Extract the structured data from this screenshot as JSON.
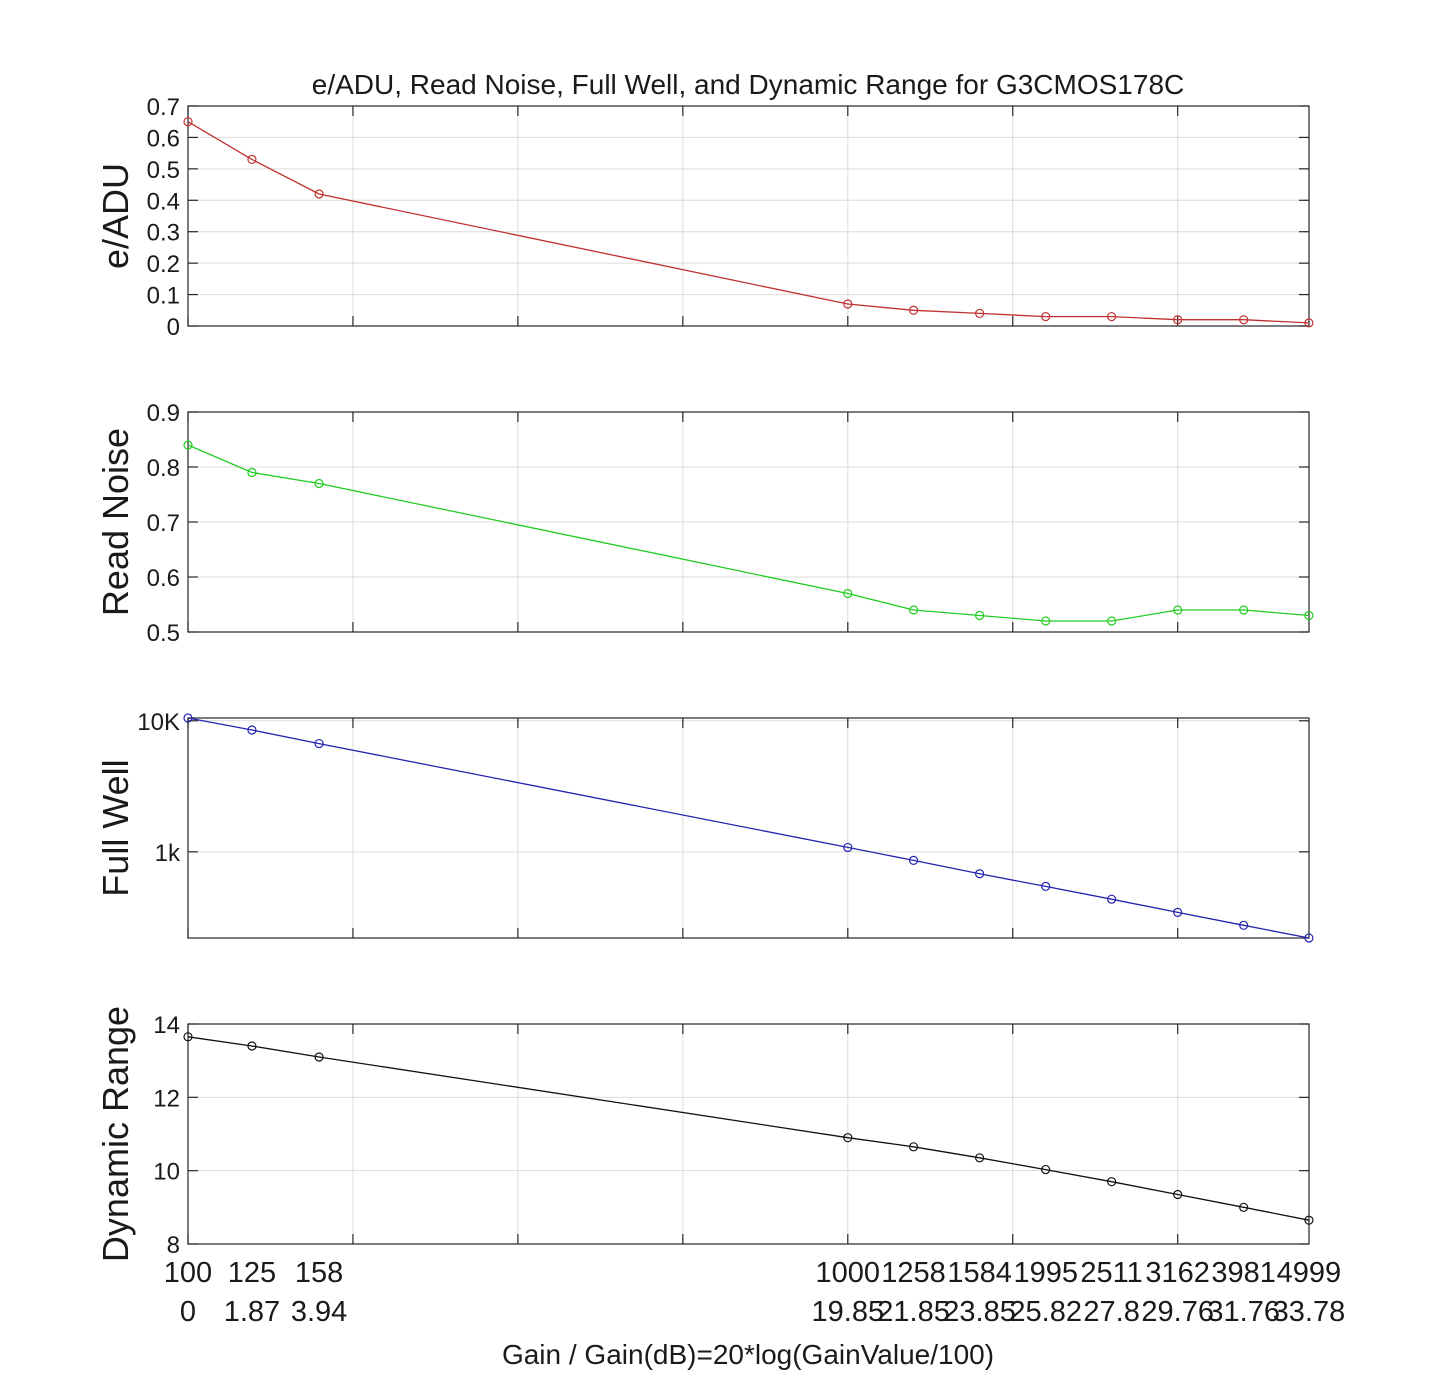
{
  "chart_data": {
    "type": "line",
    "title": "e/ADU, Read Noise, Full Well, and Dynamic Range for G3CMOS178C",
    "xlabel": "Gain / Gain(dB)=20*log(GainValue/100)",
    "x": [
      100,
      125,
      158,
      1000,
      1258,
      1584,
      1995,
      2511,
      3162,
      3981,
      4999
    ],
    "x_tick_labels": [
      "100",
      "125",
      "158",
      "1000",
      "1258",
      "1584",
      "1995",
      "2511",
      "3162",
      "3981",
      "4999"
    ],
    "x_tick_labels_db": [
      "0",
      "1.87",
      "3.94",
      "19.85",
      "21.85",
      "23.85",
      "25.82",
      "27.8",
      "29.76",
      "31.76",
      "33.78"
    ],
    "x_scale": "gain dB (20*log(GainValue/100))",
    "grid": true,
    "panels": [
      {
        "ylabel": "e/ADU",
        "color": "#c03030",
        "scale": "linear",
        "ylim": [
          0,
          0.7
        ],
        "yticks": [
          0,
          0.1,
          0.2,
          0.3,
          0.4,
          0.5,
          0.6,
          0.7
        ],
        "ytick_labels": [
          "0",
          "0.1",
          "0.2",
          "0.3",
          "0.4",
          "0.5",
          "0.6",
          "0.7"
        ],
        "values": [
          0.65,
          0.53,
          0.42,
          0.07,
          0.05,
          0.04,
          0.03,
          0.03,
          0.02,
          0.02,
          0.01
        ]
      },
      {
        "ylabel": "Read Noise",
        "color": "#22cc22",
        "scale": "linear",
        "ylim": [
          0.5,
          0.9
        ],
        "yticks": [
          0.5,
          0.6,
          0.7,
          0.8,
          0.9
        ],
        "ytick_labels": [
          "0.5",
          "0.6",
          "0.7",
          "0.8",
          "0.9"
        ],
        "values": [
          0.84,
          0.79,
          0.77,
          0.57,
          0.54,
          0.53,
          0.52,
          0.52,
          0.54,
          0.54,
          0.53
        ]
      },
      {
        "ylabel": "Full Well",
        "color": "#2424b0",
        "scale": "log",
        "ylim": [
          220,
          10500
        ],
        "yticks": [
          1000,
          10000
        ],
        "ytick_labels": [
          "1k",
          "10K"
        ],
        "values": [
          10500,
          8500,
          6700,
          1080,
          860,
          680,
          545,
          435,
          345,
          275,
          220
        ]
      },
      {
        "ylabel": "Dynamic Range",
        "color": "#111111",
        "scale": "linear",
        "ylim": [
          8,
          14
        ],
        "yticks": [
          8,
          10,
          12,
          14
        ],
        "ytick_labels": [
          "8",
          "10",
          "12",
          "14"
        ],
        "values": [
          13.65,
          13.4,
          13.1,
          10.9,
          10.65,
          10.35,
          10.03,
          9.7,
          9.35,
          9.0,
          8.65
        ]
      }
    ]
  }
}
